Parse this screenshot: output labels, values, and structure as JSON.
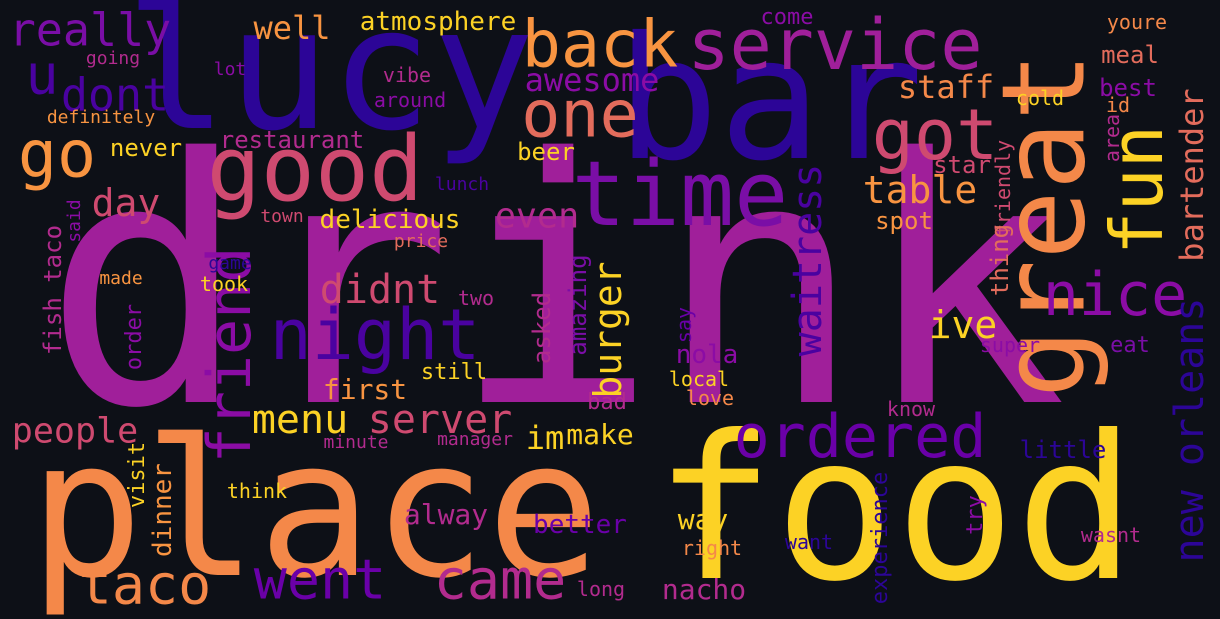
{
  "words": [
    {
      "text": "drink",
      "color": "#a01f9a"
    },
    {
      "text": "food",
      "color": "#fcd225"
    },
    {
      "text": "place",
      "color": "#f48849"
    },
    {
      "text": "lucy",
      "color": "#2c0597"
    },
    {
      "text": "bar",
      "color": "#2c0597"
    },
    {
      "text": "great",
      "color": "#f48849"
    },
    {
      "text": "good",
      "color": "#cf4a70"
    },
    {
      "text": "time",
      "color": "#7a0ea6"
    },
    {
      "text": "service",
      "color": "#a01f9a"
    },
    {
      "text": "fun",
      "color": "#fcd225"
    },
    {
      "text": "back",
      "color": "#f89441"
    },
    {
      "text": "one",
      "color": "#e36c5c"
    },
    {
      "text": "got",
      "color": "#cf4a70"
    },
    {
      "text": "night",
      "color": "#4a02a0"
    },
    {
      "text": "ordered",
      "color": "#6a00a8"
    },
    {
      "text": "friend",
      "color": "#8b0ca5"
    },
    {
      "text": "nice",
      "color": "#8b0ca5"
    },
    {
      "text": "went",
      "color": "#6a00a8"
    },
    {
      "text": "came",
      "color": "#b22b8e"
    },
    {
      "text": "taco",
      "color": "#f48849"
    },
    {
      "text": "go",
      "color": "#f89441"
    },
    {
      "text": "u",
      "color": "#4a02a0"
    },
    {
      "text": "really",
      "color": "#7a0ea6"
    },
    {
      "text": "dont",
      "color": "#4a02a0"
    },
    {
      "text": "awesome",
      "color": "#8b0ca5"
    },
    {
      "text": "well",
      "color": "#f89441"
    },
    {
      "text": "atmosphere",
      "color": "#fcd225"
    },
    {
      "text": "staff",
      "color": "#f48849"
    },
    {
      "text": "bartender",
      "color": "#e36c5c"
    },
    {
      "text": "waitress",
      "color": "#4a02a0"
    },
    {
      "text": "new orleans",
      "color": "#2c0597"
    },
    {
      "text": "table",
      "color": "#f89441"
    },
    {
      "text": "even",
      "color": "#b22b8e"
    },
    {
      "text": "day",
      "color": "#cf4a70"
    },
    {
      "text": "didnt",
      "color": "#cf4a70"
    },
    {
      "text": "menu",
      "color": "#fcd225"
    },
    {
      "text": "server",
      "color": "#cf4a70"
    },
    {
      "text": "people",
      "color": "#cf4a70"
    },
    {
      "text": "ive",
      "color": "#fcd225"
    },
    {
      "text": "burger",
      "color": "#fcd225"
    },
    {
      "text": "im",
      "color": "#fcd225"
    },
    {
      "text": "delicious",
      "color": "#fcd225"
    },
    {
      "text": "restaurant",
      "color": "#b22b8e"
    },
    {
      "text": "never",
      "color": "#fcd225"
    },
    {
      "text": "beer",
      "color": "#fcd225"
    },
    {
      "text": "come",
      "color": "#8b0ca5"
    },
    {
      "text": "meal",
      "color": "#e36c5c"
    },
    {
      "text": "best",
      "color": "#8b0ca5"
    },
    {
      "text": "youre",
      "color": "#f48849"
    },
    {
      "text": "cold",
      "color": "#fcd225"
    },
    {
      "text": "id",
      "color": "#f48849"
    },
    {
      "text": "area",
      "color": "#b22b8e"
    },
    {
      "text": "star",
      "color": "#cf4a70"
    },
    {
      "text": "friendly",
      "color": "#cf4a70"
    },
    {
      "text": "spot",
      "color": "#f89441"
    },
    {
      "text": "thing",
      "color": "#e36c5c"
    },
    {
      "text": "first",
      "color": "#f89441"
    },
    {
      "text": "still",
      "color": "#fcd225"
    },
    {
      "text": "nola",
      "color": "#8b0ca5"
    },
    {
      "text": "local",
      "color": "#fcd225"
    },
    {
      "text": "love",
      "color": "#f48849"
    },
    {
      "text": "bad",
      "color": "#b22b8e"
    },
    {
      "text": "amazing",
      "color": "#7a0ea6"
    },
    {
      "text": "asked",
      "color": "#b22b8e"
    },
    {
      "text": "say",
      "color": "#6a00a8"
    },
    {
      "text": "two",
      "color": "#b22b8e"
    },
    {
      "text": "eat",
      "color": "#7a0ea6"
    },
    {
      "text": "super",
      "color": "#8b0ca5"
    },
    {
      "text": "know",
      "color": "#b22b8e"
    },
    {
      "text": "little",
      "color": "#2c0597"
    },
    {
      "text": "make",
      "color": "#fcd225"
    },
    {
      "text": "manager",
      "color": "#b22b8e"
    },
    {
      "text": "minute",
      "color": "#b22b8e"
    },
    {
      "text": "alway",
      "color": "#b22b8e"
    },
    {
      "text": "better",
      "color": "#6a00a8"
    },
    {
      "text": "way",
      "color": "#fcd225"
    },
    {
      "text": "right",
      "color": "#f48849"
    },
    {
      "text": "want",
      "color": "#2c0597"
    },
    {
      "text": "experience",
      "color": "#2c0597"
    },
    {
      "text": "try",
      "color": "#8b0ca5"
    },
    {
      "text": "wasnt",
      "color": "#b22b8e"
    },
    {
      "text": "nacho",
      "color": "#b22b8e"
    },
    {
      "text": "long",
      "color": "#b22b8e"
    },
    {
      "text": "think",
      "color": "#fcd225"
    },
    {
      "text": "dinner",
      "color": "#f89441"
    },
    {
      "text": "visit",
      "color": "#fcd225"
    },
    {
      "text": "order",
      "color": "#8b0ca5"
    },
    {
      "text": "fish taco",
      "color": "#b22b8e"
    },
    {
      "text": "made",
      "color": "#f89441"
    },
    {
      "text": "took",
      "color": "#fcd225"
    },
    {
      "text": "game",
      "color": "#2c0597"
    },
    {
      "text": "price",
      "color": "#e36c5c"
    },
    {
      "text": "town",
      "color": "#cf4a70"
    },
    {
      "text": "said",
      "color": "#8b0ca5"
    },
    {
      "text": "lunch",
      "color": "#4a02a0"
    },
    {
      "text": "going",
      "color": "#b22b8e"
    },
    {
      "text": "definitely",
      "color": "#f89441"
    },
    {
      "text": "lot",
      "color": "#8b0ca5"
    },
    {
      "text": "vibe",
      "color": "#b22b8e"
    },
    {
      "text": "around",
      "color": "#8b0ca5"
    }
  ]
}
